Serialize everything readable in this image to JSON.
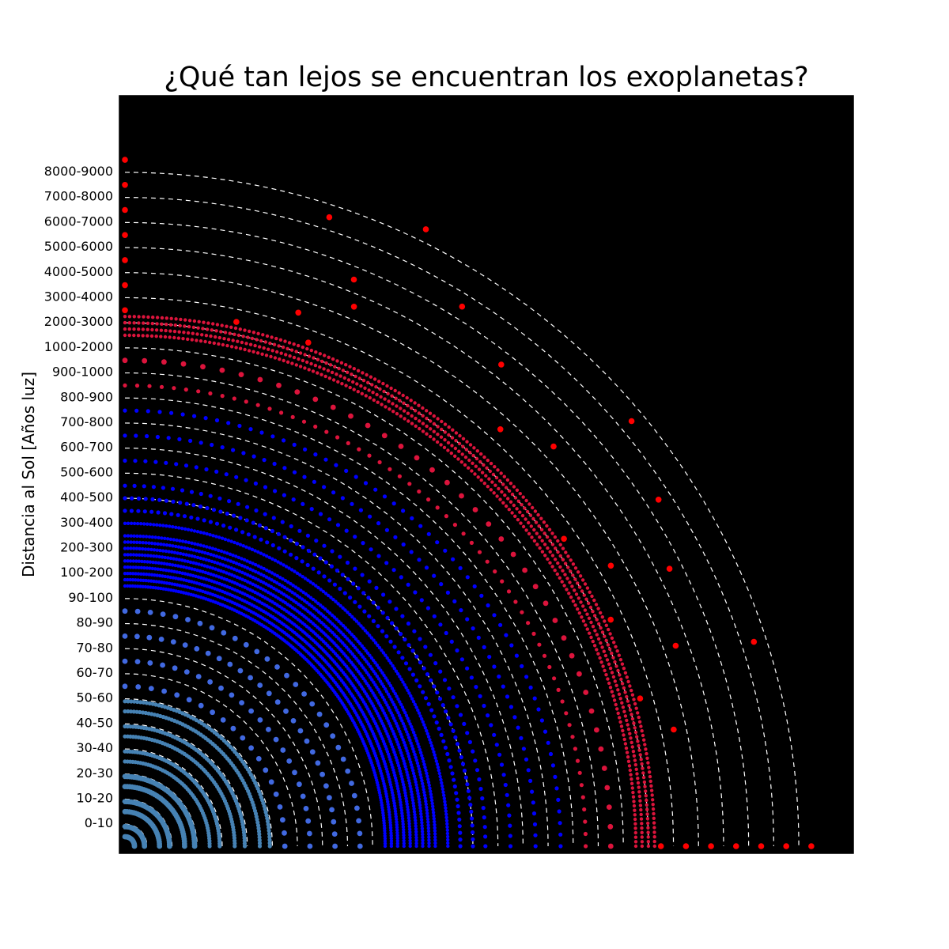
{
  "chart_data": {
    "type": "scatter",
    "title": "¿Qué tan lejos se encuentran los exoplanetas?",
    "ylabel": "Distancia al Sol [Años luz]",
    "xlabel": "",
    "background": "#000000",
    "grid": false,
    "legend": "none",
    "ring_style": "white dashed quarter circles",
    "y_tick_labels": [
      "0-10",
      "10-20",
      "20-30",
      "30-40",
      "40-50",
      "50-60",
      "60-70",
      "70-80",
      "80-90",
      "90-100",
      "100-200",
      "200-300",
      "300-400",
      "400-500",
      "500-600",
      "600-700",
      "700-800",
      "800-900",
      "900-1000",
      "1000-2000",
      "2000-3000",
      "3000-4000",
      "4000-5000",
      "5000-6000",
      "6000-7000",
      "7000-8000",
      "8000-9000"
    ],
    "colors": {
      "near": "#4682b4",
      "mid_light": "#4169e1",
      "mid": "#0000ff",
      "far": "#dc143c",
      "farthest": "#ff0000",
      "ring": "#ffffff"
    },
    "series": [
      {
        "color_key": "near",
        "arcs": [
          {
            "level": 0,
            "count": 14
          },
          {
            "level": 0.4,
            "count": 22
          },
          {
            "level": 1,
            "count": 26
          },
          {
            "level": 1.4,
            "count": 36
          },
          {
            "level": 2,
            "count": 40
          },
          {
            "level": 2.4,
            "count": 48
          },
          {
            "level": 3,
            "count": 52
          },
          {
            "level": 3.4,
            "count": 60
          },
          {
            "level": 4,
            "count": 64
          },
          {
            "level": 4.4,
            "count": 70
          },
          {
            "level": 5,
            "count": 72
          },
          {
            "level": 5.4,
            "count": 74
          }
        ]
      },
      {
        "color_key": "mid_light",
        "arcs": [
          {
            "level": 6,
            "count": 20
          },
          {
            "level": 7,
            "count": 24
          },
          {
            "level": 8,
            "count": 28
          },
          {
            "level": 9,
            "count": 30
          }
        ]
      },
      {
        "color_key": "mid",
        "arcs": [
          {
            "level": 10,
            "count": 160
          },
          {
            "level": 10.25,
            "count": 160
          },
          {
            "level": 10.5,
            "count": 160
          },
          {
            "level": 10.75,
            "count": 160
          },
          {
            "level": 11,
            "count": 160
          },
          {
            "level": 11.25,
            "count": 160
          },
          {
            "level": 11.5,
            "count": 160
          },
          {
            "level": 11.75,
            "count": 160
          },
          {
            "level": 12,
            "count": 160
          },
          {
            "level": 12.5,
            "count": 160
          },
          {
            "level": 13,
            "count": 80
          },
          {
            "level": 13.5,
            "count": 80
          },
          {
            "level": 14,
            "count": 60
          },
          {
            "level": 15,
            "count": 60
          },
          {
            "level": 16,
            "count": 60
          },
          {
            "level": 17,
            "count": 60
          }
        ]
      },
      {
        "color_key": "far",
        "arcs": [
          {
            "level": 18,
            "count": 60
          },
          {
            "level": 19,
            "count": 40
          },
          {
            "level": 20,
            "count": 180
          },
          {
            "level": 20.25,
            "count": 180
          },
          {
            "level": 20.5,
            "count": 180
          },
          {
            "level": 20.75,
            "count": 180
          }
        ]
      },
      {
        "color_key": "farthest",
        "points": [
          {
            "level": 21,
            "angle_deg": 90
          },
          {
            "level": 21,
            "angle_deg": 78
          },
          {
            "level": 21,
            "angle_deg": 70
          },
          {
            "level": 21,
            "angle_deg": 35
          },
          {
            "level": 21,
            "angle_deg": 25
          },
          {
            "level": 21,
            "angle_deg": 16
          },
          {
            "level": 21,
            "angle_deg": 0
          },
          {
            "level": 22,
            "angle_deg": 90
          },
          {
            "level": 22,
            "angle_deg": 72
          },
          {
            "level": 22,
            "angle_deg": 48
          },
          {
            "level": 22,
            "angle_deg": 30
          },
          {
            "level": 22,
            "angle_deg": 12
          },
          {
            "level": 22,
            "angle_deg": 0
          },
          {
            "level": 23,
            "angle_deg": 90
          },
          {
            "level": 23,
            "angle_deg": 67
          },
          {
            "level": 23,
            "angle_deg": 43
          },
          {
            "level": 23,
            "angle_deg": 20
          },
          {
            "level": 23,
            "angle_deg": 0
          },
          {
            "level": 24,
            "angle_deg": 90
          },
          {
            "level": 24,
            "angle_deg": 68
          },
          {
            "level": 24,
            "angle_deg": 52
          },
          {
            "level": 24,
            "angle_deg": 27
          },
          {
            "level": 24,
            "angle_deg": 0
          },
          {
            "level": 25,
            "angle_deg": 90
          },
          {
            "level": 25,
            "angle_deg": 58
          },
          {
            "level": 25,
            "angle_deg": 33
          },
          {
            "level": 25,
            "angle_deg": 0
          },
          {
            "level": 26,
            "angle_deg": 90
          },
          {
            "level": 26,
            "angle_deg": 72
          },
          {
            "level": 26,
            "angle_deg": 40
          },
          {
            "level": 26,
            "angle_deg": 18
          },
          {
            "level": 26,
            "angle_deg": 0
          },
          {
            "level": 27,
            "angle_deg": 90
          },
          {
            "level": 27,
            "angle_deg": 64
          },
          {
            "level": 27,
            "angle_deg": 0
          }
        ]
      }
    ]
  }
}
